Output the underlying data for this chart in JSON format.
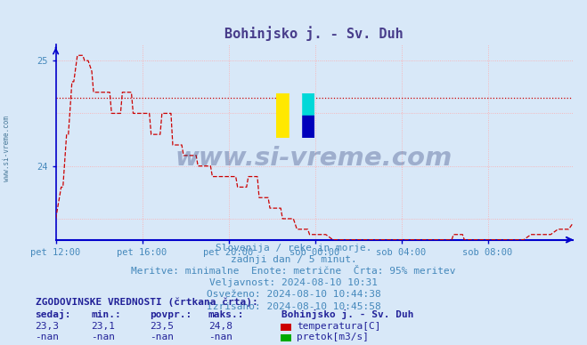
{
  "title": "Bohinjsko j. - Sv. Duh",
  "title_color": "#483D8B",
  "bg_color": "#d8e8f8",
  "plot_bg_color": "#d8e8f8",
  "grid_color": "#ffaaaa",
  "axis_color": "#0000cc",
  "line_color": "#cc0000",
  "avg_line_value": 24.65,
  "avg_line_color": "#cc0000",
  "ylim": [
    23.3,
    25.15
  ],
  "xtick_labels": [
    "pet 12:00",
    "pet 16:00",
    "pet 20:00",
    "sob 00:00",
    "sob 04:00",
    "sob 08:00"
  ],
  "xtick_positions": [
    0,
    48,
    96,
    144,
    192,
    240
  ],
  "total_points": 288,
  "footer_lines": [
    "Slovenija / reke in morje.",
    "zadnji dan / 5 minut.",
    "Meritve: minimalne  Enote: metrične  Črta: 95% meritev",
    "Veljavnost: 2024-08-10 10:31",
    "Osveženo: 2024-08-10 10:44:38",
    "Izrisano: 2024-08-10 10:45:58"
  ],
  "footer_color": "#4488bb",
  "footer_fontsize": 8.0,
  "table_header": "ZGODOVINSKE VREDNOSTI (črtkana črta):",
  "table_cols": [
    "sedaj:",
    "min.:",
    "povpr.:",
    "maks.:"
  ],
  "table_row1": [
    "23,3",
    "23,1",
    "23,5",
    "24,8"
  ],
  "table_row2": [
    "-nan",
    "-nan",
    "-nan",
    "-nan"
  ],
  "legend_station": "Bohinjsko j. - Sv. Duh",
  "legend_temp_color": "#cc0000",
  "legend_flow_color": "#00aa00",
  "watermark": "www.si-vreme.com",
  "watermark_color": "#1a2a6c",
  "watermark_alpha": 0.3,
  "sidebar_text": "www.si-vreme.com",
  "sidebar_color": "#4a7a9a"
}
